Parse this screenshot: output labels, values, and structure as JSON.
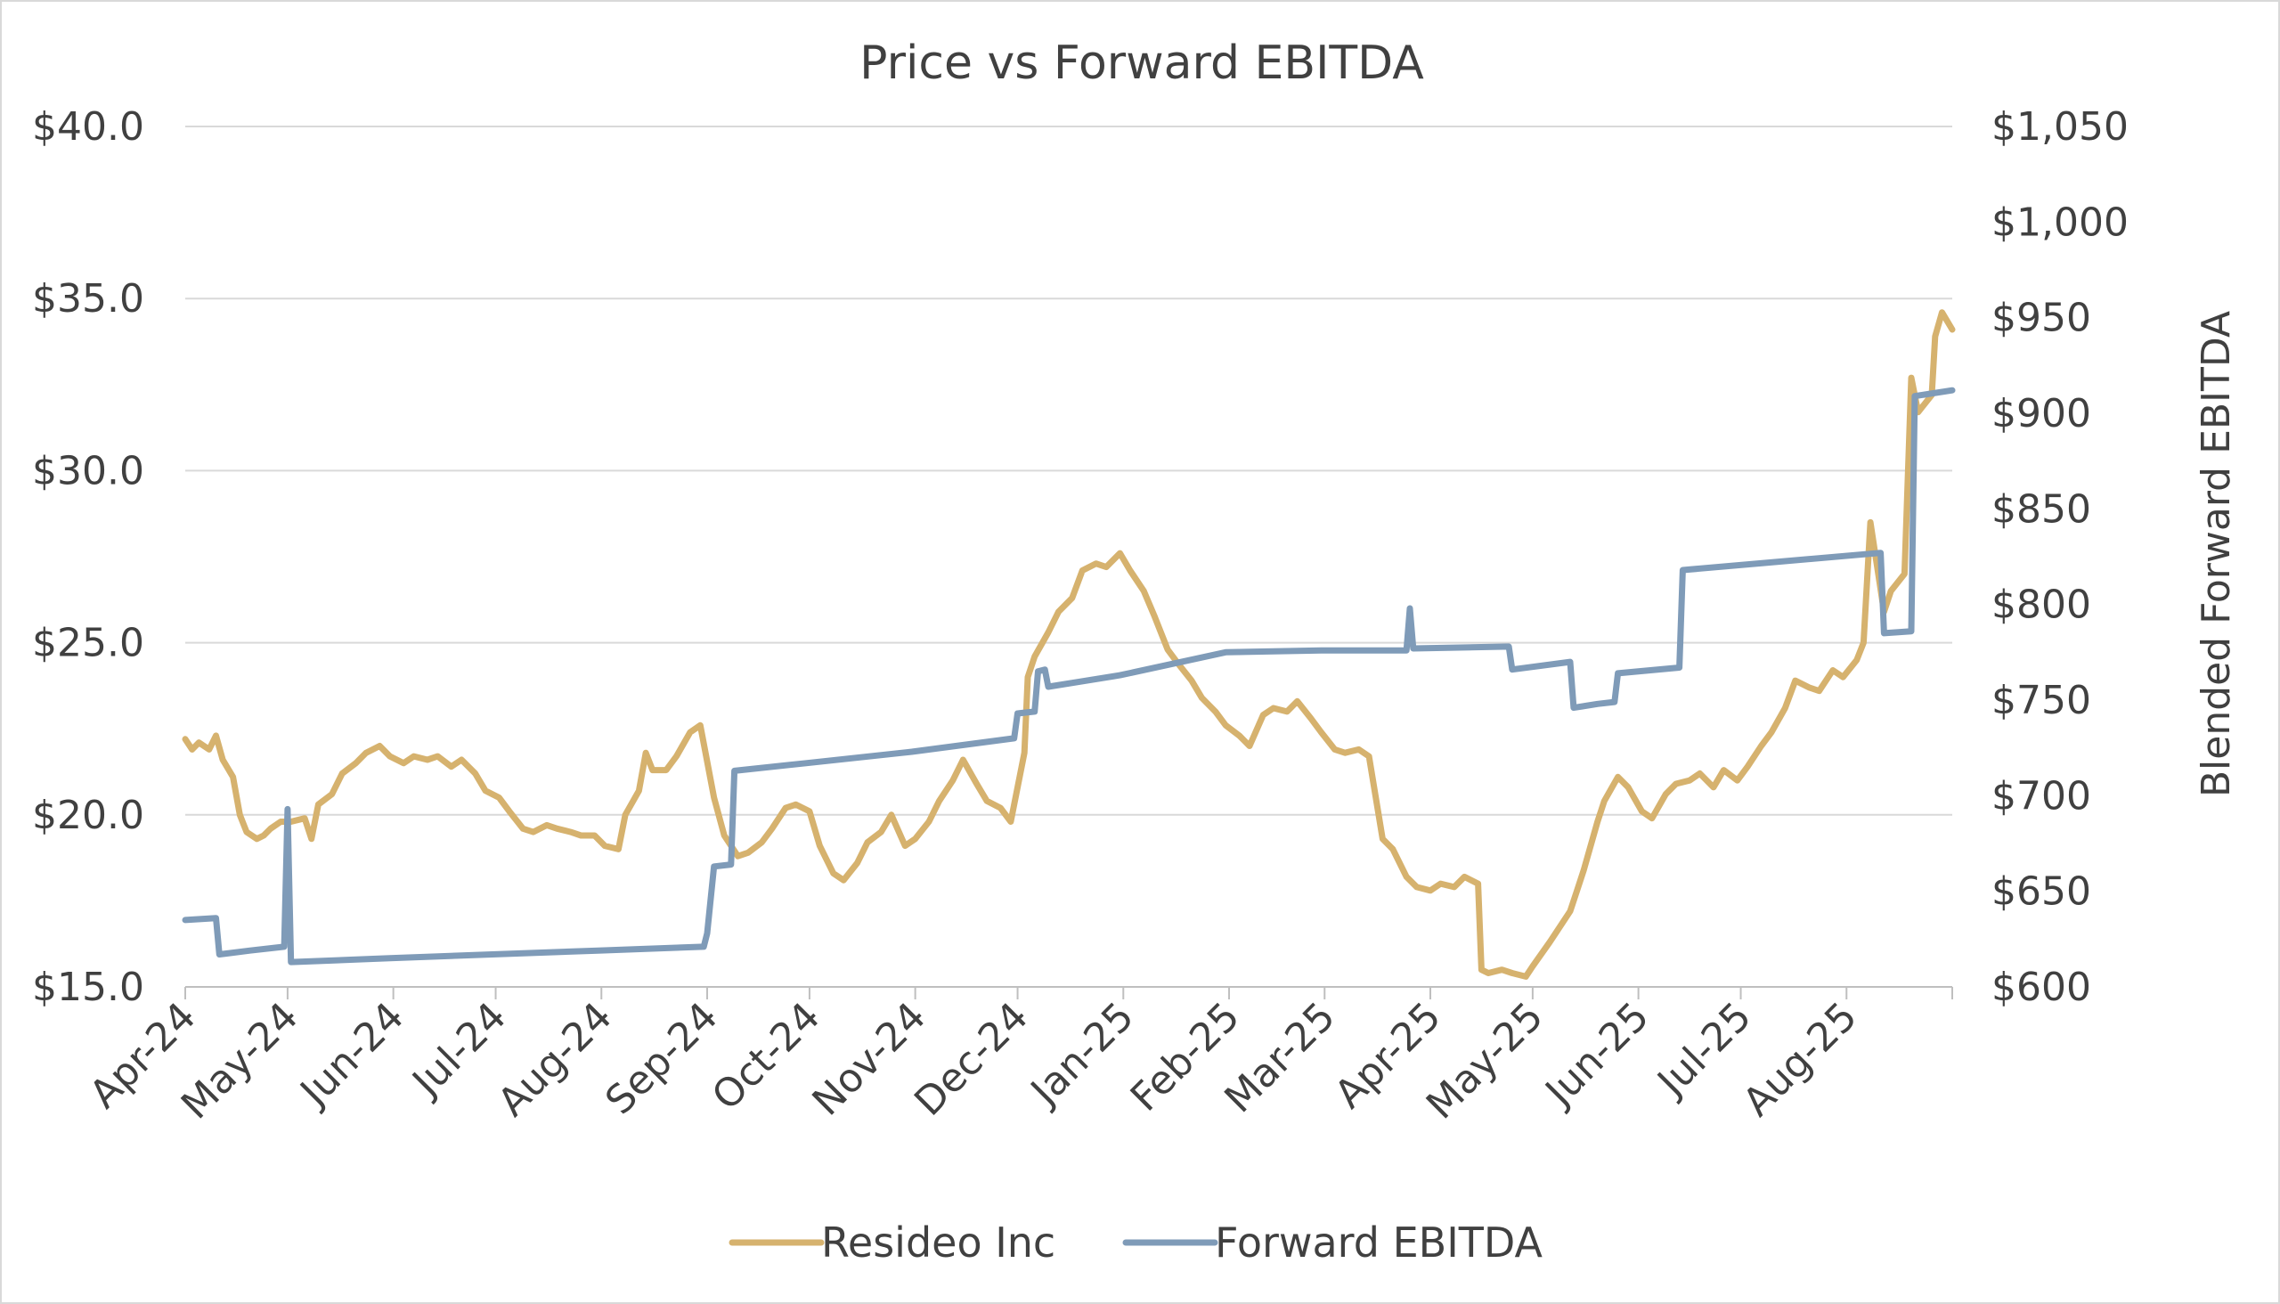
{
  "chart_data": {
    "type": "line",
    "title": "Price vs Forward EBITDA",
    "xlabel": "",
    "ylabel_left": "",
    "ylabel_right": "Blended Forward EBITDA",
    "x_tick_labels": [
      "Apr-24",
      "May-24",
      "Jun-24",
      "Jul-24",
      "Aug-24",
      "Sep-24",
      "Oct-24",
      "Nov-24",
      "Dec-24",
      "Jan-25",
      "Feb-25",
      "Mar-25",
      "Apr-25",
      "May-25",
      "Jun-25",
      "Jul-25",
      "Aug-25"
    ],
    "x_tick_dates": [
      "2024-04-01",
      "2024-05-01",
      "2024-06-01",
      "2024-07-01",
      "2024-08-01",
      "2024-09-01",
      "2024-10-01",
      "2024-11-01",
      "2024-12-01",
      "2025-01-01",
      "2025-02-01",
      "2025-03-01",
      "2025-04-01",
      "2025-05-01",
      "2025-06-01",
      "2025-07-01",
      "2025-08-01"
    ],
    "x_range": [
      "2024-04-01",
      "2025-09-01"
    ],
    "y_left": {
      "range": [
        15,
        40
      ],
      "ticks": [
        15,
        20,
        25,
        30,
        35,
        40
      ],
      "tick_labels": [
        "$15.0",
        "$20.0",
        "$25.0",
        "$30.0",
        "$35.0",
        "$40.0"
      ]
    },
    "y_right": {
      "range": [
        600,
        1050
      ],
      "ticks": [
        600,
        650,
        700,
        750,
        800,
        850,
        900,
        950,
        1000,
        1050
      ],
      "tick_labels": [
        "$600",
        "$650",
        "$700",
        "$750",
        "$800",
        "$850",
        "$900",
        "$950",
        "$1,000",
        "$1,050"
      ]
    },
    "grid": "horizontal",
    "legend": {
      "position": "bottom",
      "entries": [
        "Resideo Inc",
        "Forward EBITDA"
      ]
    },
    "series": [
      {
        "name": "Resideo Inc",
        "axis": "left",
        "color": "#d6b26e",
        "points": [
          [
            "2024-04-01",
            22.2
          ],
          [
            "2024-04-03",
            21.9
          ],
          [
            "2024-04-05",
            22.1
          ],
          [
            "2024-04-08",
            21.9
          ],
          [
            "2024-04-10",
            22.3
          ],
          [
            "2024-04-12",
            21.6
          ],
          [
            "2024-04-15",
            21.1
          ],
          [
            "2024-04-17",
            20.0
          ],
          [
            "2024-04-19",
            19.5
          ],
          [
            "2024-04-22",
            19.3
          ],
          [
            "2024-04-24",
            19.4
          ],
          [
            "2024-04-26",
            19.6
          ],
          [
            "2024-04-29",
            19.8
          ],
          [
            "2024-05-02",
            19.8
          ],
          [
            "2024-05-06",
            19.9
          ],
          [
            "2024-05-08",
            19.3
          ],
          [
            "2024-05-10",
            20.3
          ],
          [
            "2024-05-14",
            20.6
          ],
          [
            "2024-05-17",
            21.2
          ],
          [
            "2024-05-21",
            21.5
          ],
          [
            "2024-05-24",
            21.8
          ],
          [
            "2024-05-28",
            22.0
          ],
          [
            "2024-05-31",
            21.7
          ],
          [
            "2024-06-04",
            21.5
          ],
          [
            "2024-06-07",
            21.7
          ],
          [
            "2024-06-11",
            21.6
          ],
          [
            "2024-06-14",
            21.7
          ],
          [
            "2024-06-18",
            21.4
          ],
          [
            "2024-06-21",
            21.6
          ],
          [
            "2024-06-25",
            21.2
          ],
          [
            "2024-06-28",
            20.7
          ],
          [
            "2024-07-02",
            20.5
          ],
          [
            "2024-07-05",
            20.1
          ],
          [
            "2024-07-09",
            19.6
          ],
          [
            "2024-07-12",
            19.5
          ],
          [
            "2024-07-16",
            19.7
          ],
          [
            "2024-07-19",
            19.6
          ],
          [
            "2024-07-23",
            19.5
          ],
          [
            "2024-07-26",
            19.4
          ],
          [
            "2024-07-30",
            19.4
          ],
          [
            "2024-08-02",
            19.1
          ],
          [
            "2024-08-06",
            19.0
          ],
          [
            "2024-08-08",
            20.0
          ],
          [
            "2024-08-12",
            20.7
          ],
          [
            "2024-08-14",
            21.8
          ],
          [
            "2024-08-16",
            21.3
          ],
          [
            "2024-08-20",
            21.3
          ],
          [
            "2024-08-23",
            21.7
          ],
          [
            "2024-08-27",
            22.4
          ],
          [
            "2024-08-30",
            22.6
          ],
          [
            "2024-09-03",
            20.5
          ],
          [
            "2024-09-06",
            19.4
          ],
          [
            "2024-09-10",
            18.8
          ],
          [
            "2024-09-13",
            18.9
          ],
          [
            "2024-09-17",
            19.2
          ],
          [
            "2024-09-20",
            19.6
          ],
          [
            "2024-09-24",
            20.2
          ],
          [
            "2024-09-27",
            20.3
          ],
          [
            "2024-10-01",
            20.1
          ],
          [
            "2024-10-04",
            19.1
          ],
          [
            "2024-10-08",
            18.3
          ],
          [
            "2024-10-11",
            18.1
          ],
          [
            "2024-10-15",
            18.6
          ],
          [
            "2024-10-18",
            19.2
          ],
          [
            "2024-10-22",
            19.5
          ],
          [
            "2024-10-25",
            20.0
          ],
          [
            "2024-10-29",
            19.1
          ],
          [
            "2024-11-01",
            19.3
          ],
          [
            "2024-11-05",
            19.8
          ],
          [
            "2024-11-08",
            20.4
          ],
          [
            "2024-11-12",
            21.0
          ],
          [
            "2024-11-15",
            21.6
          ],
          [
            "2024-11-19",
            20.9
          ],
          [
            "2024-11-22",
            20.4
          ],
          [
            "2024-11-26",
            20.2
          ],
          [
            "2024-11-29",
            19.8
          ],
          [
            "2024-12-03",
            21.8
          ],
          [
            "2024-12-04",
            24.0
          ],
          [
            "2024-12-06",
            24.6
          ],
          [
            "2024-12-10",
            25.3
          ],
          [
            "2024-12-13",
            25.9
          ],
          [
            "2024-12-17",
            26.3
          ],
          [
            "2024-12-20",
            27.1
          ],
          [
            "2024-12-24",
            27.3
          ],
          [
            "2024-12-27",
            27.2
          ],
          [
            "2024-12-31",
            27.6
          ],
          [
            "2025-01-03",
            27.1
          ],
          [
            "2025-01-07",
            26.5
          ],
          [
            "2025-01-10",
            25.8
          ],
          [
            "2025-01-14",
            24.8
          ],
          [
            "2025-01-17",
            24.4
          ],
          [
            "2025-01-21",
            23.9
          ],
          [
            "2025-01-24",
            23.4
          ],
          [
            "2025-01-28",
            23.0
          ],
          [
            "2025-01-31",
            22.6
          ],
          [
            "2025-02-04",
            22.3
          ],
          [
            "2025-02-07",
            22.0
          ],
          [
            "2025-02-11",
            22.9
          ],
          [
            "2025-02-14",
            23.1
          ],
          [
            "2025-02-18",
            23.0
          ],
          [
            "2025-02-21",
            23.3
          ],
          [
            "2025-02-25",
            22.8
          ],
          [
            "2025-02-28",
            22.4
          ],
          [
            "2025-03-04",
            21.9
          ],
          [
            "2025-03-07",
            21.8
          ],
          [
            "2025-03-11",
            21.9
          ],
          [
            "2025-03-14",
            21.7
          ],
          [
            "2025-03-18",
            19.3
          ],
          [
            "2025-03-21",
            19.0
          ],
          [
            "2025-03-25",
            18.2
          ],
          [
            "2025-03-28",
            17.9
          ],
          [
            "2025-04-01",
            17.8
          ],
          [
            "2025-04-04",
            18.0
          ],
          [
            "2025-04-08",
            17.9
          ],
          [
            "2025-04-11",
            18.2
          ],
          [
            "2025-04-15",
            18.0
          ],
          [
            "2025-04-16",
            15.5
          ],
          [
            "2025-04-18",
            15.4
          ],
          [
            "2025-04-22",
            15.5
          ],
          [
            "2025-04-25",
            15.4
          ],
          [
            "2025-04-29",
            15.3
          ],
          [
            "2025-05-01",
            15.6
          ],
          [
            "2025-05-06",
            16.3
          ],
          [
            "2025-05-08",
            16.6
          ],
          [
            "2025-05-12",
            17.2
          ],
          [
            "2025-05-14",
            17.8
          ],
          [
            "2025-05-16",
            18.4
          ],
          [
            "2025-05-20",
            19.8
          ],
          [
            "2025-05-22",
            20.4
          ],
          [
            "2025-05-26",
            21.1
          ],
          [
            "2025-05-29",
            20.8
          ],
          [
            "2025-06-02",
            20.1
          ],
          [
            "2025-06-05",
            19.9
          ],
          [
            "2025-06-09",
            20.6
          ],
          [
            "2025-06-12",
            20.9
          ],
          [
            "2025-06-16",
            21.0
          ],
          [
            "2025-06-19",
            21.2
          ],
          [
            "2025-06-23",
            20.8
          ],
          [
            "2025-06-26",
            21.3
          ],
          [
            "2025-06-30",
            21.0
          ],
          [
            "2025-07-03",
            21.4
          ],
          [
            "2025-07-07",
            22.0
          ],
          [
            "2025-07-10",
            22.4
          ],
          [
            "2025-07-14",
            23.1
          ],
          [
            "2025-07-17",
            23.9
          ],
          [
            "2025-07-21",
            23.7
          ],
          [
            "2025-07-24",
            23.6
          ],
          [
            "2025-07-28",
            24.2
          ],
          [
            "2025-07-31",
            24.0
          ],
          [
            "2025-08-04",
            24.5
          ],
          [
            "2025-08-06",
            25.0
          ],
          [
            "2025-08-08",
            28.5
          ],
          [
            "2025-08-12",
            25.9
          ],
          [
            "2025-08-14",
            26.5
          ],
          [
            "2025-08-18",
            27.0
          ],
          [
            "2025-08-20",
            32.7
          ],
          [
            "2025-08-22",
            31.7
          ],
          [
            "2025-08-26",
            32.2
          ],
          [
            "2025-08-27",
            33.9
          ],
          [
            "2025-08-29",
            34.6
          ],
          [
            "2025-09-01",
            34.1
          ]
        ]
      },
      {
        "name": "Forward EBITDA",
        "axis": "right",
        "color": "#7f9bb8",
        "points": [
          [
            "2024-04-01",
            635
          ],
          [
            "2024-04-10",
            636
          ],
          [
            "2024-04-11",
            617
          ],
          [
            "2024-04-20",
            619
          ],
          [
            "2024-04-30",
            621
          ],
          [
            "2024-05-01",
            693
          ],
          [
            "2024-05-02",
            613
          ],
          [
            "2024-05-31",
            615
          ],
          [
            "2024-06-30",
            617
          ],
          [
            "2024-07-31",
            619
          ],
          [
            "2024-08-31",
            621
          ],
          [
            "2024-09-01",
            628
          ],
          [
            "2024-09-03",
            663
          ],
          [
            "2024-09-08",
            664
          ],
          [
            "2024-09-09",
            713
          ],
          [
            "2024-09-30",
            717
          ],
          [
            "2024-10-31",
            723
          ],
          [
            "2024-11-30",
            730
          ],
          [
            "2024-12-01",
            743
          ],
          [
            "2024-12-06",
            744
          ],
          [
            "2024-12-07",
            765
          ],
          [
            "2024-12-09",
            766
          ],
          [
            "2024-12-10",
            757
          ],
          [
            "2024-12-31",
            763
          ],
          [
            "2025-01-31",
            775
          ],
          [
            "2025-02-28",
            776
          ],
          [
            "2025-03-25",
            776
          ],
          [
            "2025-03-26",
            798
          ],
          [
            "2025-03-27",
            777
          ],
          [
            "2025-04-24",
            778
          ],
          [
            "2025-04-25",
            766
          ],
          [
            "2025-05-12",
            770
          ],
          [
            "2025-05-13",
            746
          ],
          [
            "2025-05-20",
            748
          ],
          [
            "2025-05-25",
            749
          ],
          [
            "2025-05-26",
            764
          ],
          [
            "2025-06-13",
            767
          ],
          [
            "2025-06-14",
            818
          ],
          [
            "2025-08-11",
            827
          ],
          [
            "2025-08-12",
            785
          ],
          [
            "2025-08-20",
            786
          ],
          [
            "2025-08-21",
            909
          ],
          [
            "2025-09-01",
            912
          ]
        ]
      }
    ]
  }
}
